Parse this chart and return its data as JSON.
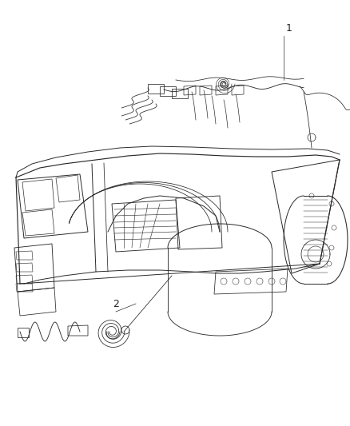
{
  "background_color": "#ffffff",
  "figure_width": 4.38,
  "figure_height": 5.33,
  "dpi": 100,
  "label_1": "1",
  "label_2": "2",
  "line_color": "#2a2a2a",
  "line_width": 0.7
}
